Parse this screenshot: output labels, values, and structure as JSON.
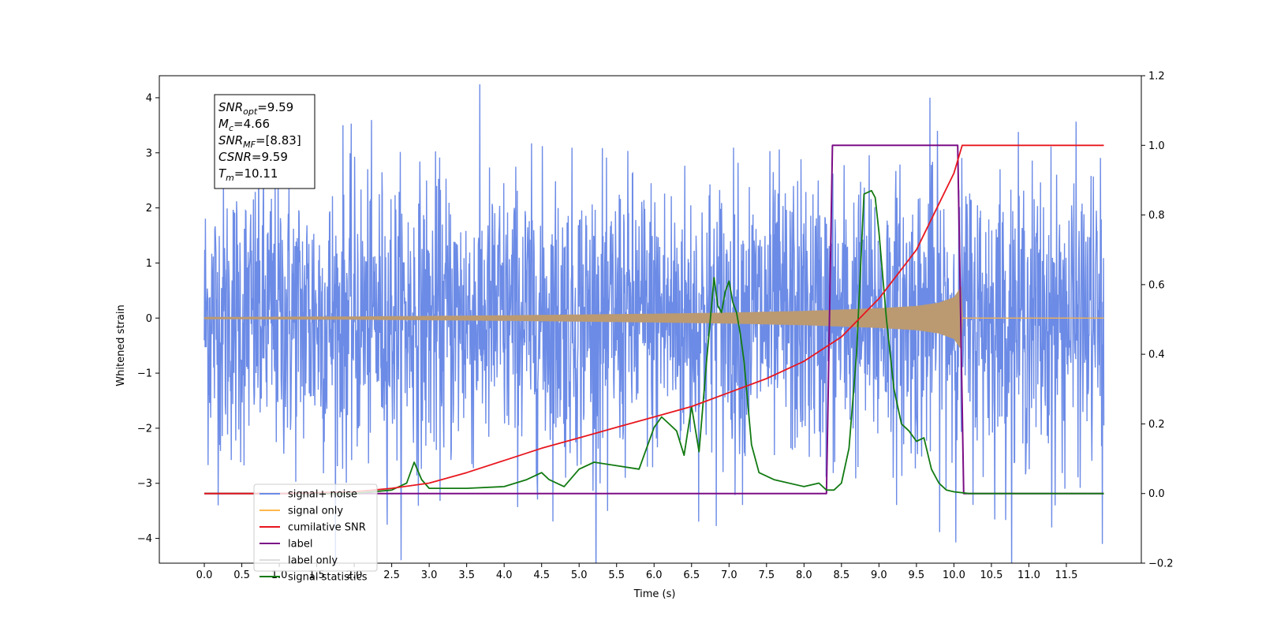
{
  "chart_data": {
    "type": "line",
    "xlabel": "Time (s)",
    "ylabel_left": "Whitened strain",
    "ylabel_right": "",
    "xlim": [
      -0.6,
      12.5
    ],
    "ylim_left": [
      -4.45,
      4.4
    ],
    "ylim_right": [
      -0.2,
      1.2
    ],
    "x_ticks": [
      "0.0",
      "0.5",
      "1.0",
      "1.5",
      "2.0",
      "2.5",
      "3.0",
      "3.5",
      "4.0",
      "4.5",
      "5.0",
      "5.5",
      "6.0",
      "6.5",
      "7.0",
      "7.5",
      "8.0",
      "8.5",
      "9.0",
      "9.5",
      "10.0",
      "10.5",
      "11.0",
      "11.5"
    ],
    "y_left_ticks": [
      "4",
      "3",
      "2",
      "1",
      "0",
      "−1",
      "−2",
      "−3",
      "−4"
    ],
    "y_right_ticks": [
      "1.2",
      "1.0",
      "0.8",
      "0.6",
      "0.4",
      "0.2",
      "0.0",
      "−0.2"
    ],
    "grid": false,
    "legend_position": "bottom-left",
    "series": [
      {
        "name": "signal+ noise",
        "axis": "left",
        "color": "#6c8be6",
        "x_range": [
          0.0,
          12.0
        ],
        "typical_amplitude_range": [
          -1.8,
          1.8
        ],
        "notable_peaks": [
          {
            "x": 9.68,
            "y": 4.0
          },
          {
            "x": 1.85,
            "y": 3.5
          },
          {
            "x": 11.98,
            "y": -4.1
          },
          {
            "x": 11.35,
            "y": -3.4
          },
          {
            "x": 5.38,
            "y": -3.5
          }
        ]
      },
      {
        "name": "signal only",
        "axis": "left",
        "color": "#ffb74d",
        "fill_color": "#bb9a72",
        "x_range": [
          0.0,
          12.0
        ],
        "merger_time": 10.11,
        "envelope": {
          "x": [
            0.0,
            2.0,
            4.0,
            6.0,
            7.0,
            8.0,
            9.0,
            9.5,
            9.8,
            10.0,
            10.11
          ],
          "amplitude": [
            0.02,
            0.03,
            0.05,
            0.08,
            0.1,
            0.13,
            0.18,
            0.22,
            0.28,
            0.38,
            0.6
          ]
        }
      },
      {
        "name": "cumilative SNR",
        "axis": "right",
        "color": "#e8161e",
        "x": [
          0.0,
          1.0,
          2.0,
          2.5,
          3.0,
          3.5,
          4.0,
          4.5,
          5.0,
          5.5,
          6.0,
          6.5,
          7.0,
          7.5,
          8.0,
          8.5,
          9.0,
          9.5,
          10.0,
          10.11,
          10.5,
          11.0,
          11.5,
          12.0
        ],
        "values": [
          0.0,
          0.0,
          0.005,
          0.015,
          0.03,
          0.06,
          0.095,
          0.13,
          0.16,
          0.19,
          0.22,
          0.25,
          0.29,
          0.33,
          0.38,
          0.45,
          0.56,
          0.7,
          0.92,
          1.0,
          1.0,
          1.0,
          1.0,
          1.0
        ]
      },
      {
        "name": "label",
        "axis": "right",
        "color": "#7b0d86",
        "x": [
          0.0,
          8.3,
          8.38,
          10.05,
          10.13,
          12.0
        ],
        "values": [
          0.0,
          0.0,
          1.0,
          1.0,
          0.0,
          0.0
        ]
      },
      {
        "name": "label only",
        "axis": "right",
        "color": "#dddddd",
        "x": [],
        "values": []
      },
      {
        "name": "signal statistics",
        "axis": "right",
        "color": "#127a12",
        "x": [
          0.0,
          2.0,
          2.5,
          2.7,
          2.8,
          2.9,
          3.0,
          3.5,
          4.0,
          4.3,
          4.5,
          4.6,
          4.8,
          5.0,
          5.2,
          5.5,
          5.8,
          6.0,
          6.1,
          6.2,
          6.3,
          6.4,
          6.5,
          6.6,
          6.7,
          6.8,
          6.85,
          6.9,
          6.95,
          7.0,
          7.05,
          7.1,
          7.15,
          7.2,
          7.3,
          7.4,
          7.6,
          8.0,
          8.2,
          8.3,
          8.4,
          8.5,
          8.6,
          8.7,
          8.8,
          8.9,
          8.95,
          9.0,
          9.1,
          9.2,
          9.3,
          9.4,
          9.5,
          9.6,
          9.7,
          9.8,
          9.9,
          10.0,
          10.2,
          12.0
        ],
        "values": [
          0.0,
          0.0,
          0.01,
          0.03,
          0.09,
          0.04,
          0.015,
          0.015,
          0.02,
          0.04,
          0.06,
          0.04,
          0.02,
          0.07,
          0.09,
          0.08,
          0.07,
          0.19,
          0.22,
          0.2,
          0.18,
          0.11,
          0.25,
          0.12,
          0.38,
          0.62,
          0.54,
          0.52,
          0.58,
          0.61,
          0.55,
          0.52,
          0.46,
          0.38,
          0.14,
          0.06,
          0.04,
          0.02,
          0.03,
          0.01,
          0.01,
          0.03,
          0.13,
          0.4,
          0.86,
          0.87,
          0.85,
          0.75,
          0.5,
          0.3,
          0.2,
          0.18,
          0.15,
          0.16,
          0.07,
          0.03,
          0.01,
          0.005,
          0.0,
          0.0
        ]
      }
    ],
    "annotation_box": {
      "lines": [
        {
          "base": "SNR",
          "sub": "opt",
          "value": "=9.59"
        },
        {
          "base": "M",
          "sub": "c",
          "value": "=4.66"
        },
        {
          "base": "SNR",
          "sub": "MF",
          "value": "=[8.83]"
        },
        {
          "base": "CSNR",
          "sub": "",
          "value": "=9.59"
        },
        {
          "base": "T",
          "sub": "m",
          "value": "=10.11"
        }
      ]
    },
    "legend": [
      {
        "label": "signal+ noise",
        "color": "#6c8be6"
      },
      {
        "label": "signal only",
        "color": "#ffb74d"
      },
      {
        "label": "cumilative SNR",
        "color": "#e8161e"
      },
      {
        "label": "label",
        "color": "#7b0d86"
      },
      {
        "label": "label only",
        "color": "#dddddd"
      },
      {
        "label": "signal statistics",
        "color": "#127a12"
      }
    ]
  }
}
